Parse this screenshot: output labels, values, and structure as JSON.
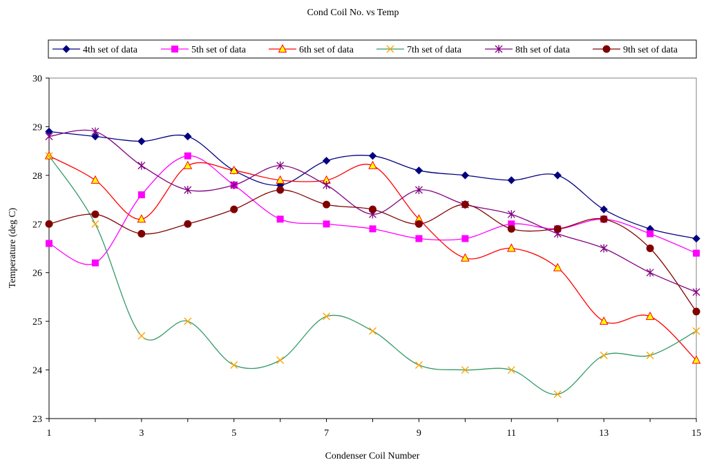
{
  "chart_data": {
    "type": "line",
    "title": "Cond Coil No. vs Temp",
    "xlabel": "Condenser Coil Number",
    "ylabel": "Temperature (deg C)",
    "x": [
      1,
      2,
      3,
      4,
      5,
      6,
      7,
      8,
      9,
      10,
      11,
      12,
      13,
      14,
      15
    ],
    "xticks": [
      "1",
      "3",
      "5",
      "7",
      "9",
      "11",
      "13",
      "15"
    ],
    "xlim": [
      1,
      15
    ],
    "ylim": [
      23,
      30
    ],
    "yticks": [
      "23",
      "24",
      "25",
      "26",
      "27",
      "28",
      "29",
      "30"
    ],
    "grid": false,
    "legend_position": "top",
    "series": [
      {
        "name": "4th set of data",
        "color": "#000080",
        "marker": "diamond",
        "values": [
          28.9,
          28.8,
          28.7,
          28.8,
          28.1,
          27.8,
          28.3,
          28.4,
          28.1,
          28.0,
          27.9,
          28.0,
          27.3,
          26.9,
          26.7
        ]
      },
      {
        "name": "5th set of data",
        "color": "#ff00ff",
        "marker": "square",
        "values": [
          26.6,
          26.2,
          27.6,
          28.4,
          27.8,
          27.1,
          27.0,
          26.9,
          26.7,
          26.7,
          27.0,
          26.9,
          27.1,
          26.8,
          26.4
        ]
      },
      {
        "name": "6th set of data",
        "color": "#ff0000",
        "marker": "triangle",
        "marker_fill": "#ffff00",
        "values": [
          28.4,
          27.9,
          27.1,
          28.2,
          28.1,
          27.9,
          27.9,
          28.2,
          27.1,
          26.3,
          26.5,
          26.1,
          25.0,
          25.1,
          24.2
        ]
      },
      {
        "name": "7th set of data",
        "color": "#339966",
        "marker": "x",
        "marker_color": "#ffa500",
        "values": [
          28.4,
          27.0,
          24.7,
          25.0,
          24.1,
          24.2,
          25.1,
          24.8,
          24.1,
          24.0,
          24.0,
          23.5,
          24.3,
          24.3,
          24.8
        ]
      },
      {
        "name": "8th set of data",
        "color": "#800080",
        "marker": "star",
        "values": [
          28.8,
          28.9,
          28.2,
          27.7,
          27.8,
          28.2,
          27.8,
          27.2,
          27.7,
          27.4,
          27.2,
          26.8,
          26.5,
          26.0,
          25.6
        ]
      },
      {
        "name": "9th set of data",
        "color": "#800000",
        "marker": "circle",
        "values": [
          27.0,
          27.2,
          26.8,
          27.0,
          27.3,
          27.7,
          27.4,
          27.3,
          27.0,
          27.4,
          26.9,
          26.9,
          27.1,
          26.5,
          25.2
        ]
      }
    ]
  }
}
